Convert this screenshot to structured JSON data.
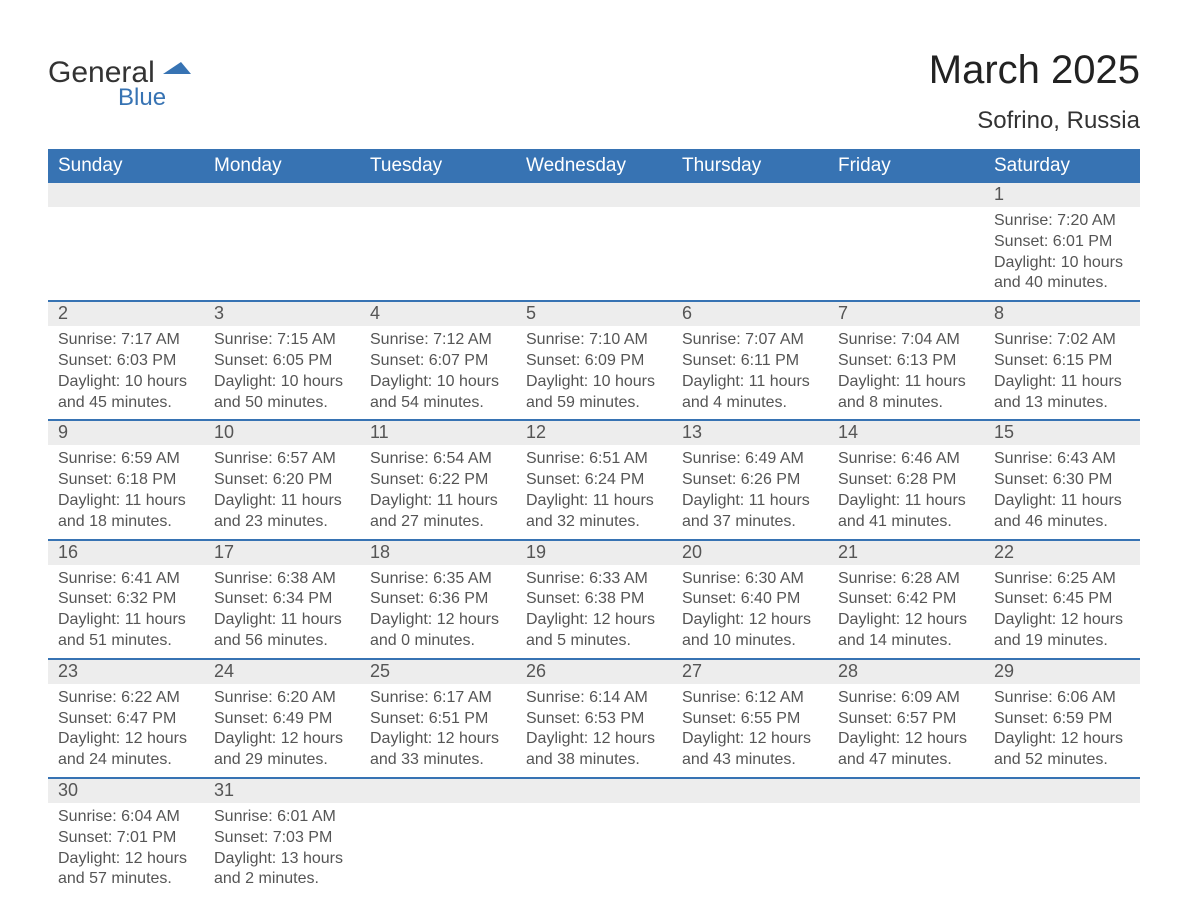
{
  "brand": {
    "name": "General",
    "sub": "Blue",
    "icon_color": "#3773b3"
  },
  "title": "March 2025",
  "location": "Sofrino, Russia",
  "colors": {
    "header_bg": "#3773b3",
    "header_text": "#ffffff",
    "row_divider": "#3773b3",
    "daynum_bg": "#ededed",
    "text": "#555555",
    "background": "#ffffff"
  },
  "typography": {
    "title_fontsize": 40,
    "subtitle_fontsize": 24,
    "header_fontsize": 19,
    "daynum_fontsize": 18,
    "body_fontsize": 16
  },
  "layout": {
    "columns": 7,
    "rows": 6,
    "week_start": "Sunday"
  },
  "day_headers": [
    "Sunday",
    "Monday",
    "Tuesday",
    "Wednesday",
    "Thursday",
    "Friday",
    "Saturday"
  ],
  "weeks": [
    [
      null,
      null,
      null,
      null,
      null,
      null,
      {
        "n": "1",
        "sunrise": "Sunrise: 7:20 AM",
        "sunset": "Sunset: 6:01 PM",
        "dl1": "Daylight: 10 hours",
        "dl2": "and 40 minutes."
      }
    ],
    [
      {
        "n": "2",
        "sunrise": "Sunrise: 7:17 AM",
        "sunset": "Sunset: 6:03 PM",
        "dl1": "Daylight: 10 hours",
        "dl2": "and 45 minutes."
      },
      {
        "n": "3",
        "sunrise": "Sunrise: 7:15 AM",
        "sunset": "Sunset: 6:05 PM",
        "dl1": "Daylight: 10 hours",
        "dl2": "and 50 minutes."
      },
      {
        "n": "4",
        "sunrise": "Sunrise: 7:12 AM",
        "sunset": "Sunset: 6:07 PM",
        "dl1": "Daylight: 10 hours",
        "dl2": "and 54 minutes."
      },
      {
        "n": "5",
        "sunrise": "Sunrise: 7:10 AM",
        "sunset": "Sunset: 6:09 PM",
        "dl1": "Daylight: 10 hours",
        "dl2": "and 59 minutes."
      },
      {
        "n": "6",
        "sunrise": "Sunrise: 7:07 AM",
        "sunset": "Sunset: 6:11 PM",
        "dl1": "Daylight: 11 hours",
        "dl2": "and 4 minutes."
      },
      {
        "n": "7",
        "sunrise": "Sunrise: 7:04 AM",
        "sunset": "Sunset: 6:13 PM",
        "dl1": "Daylight: 11 hours",
        "dl2": "and 8 minutes."
      },
      {
        "n": "8",
        "sunrise": "Sunrise: 7:02 AM",
        "sunset": "Sunset: 6:15 PM",
        "dl1": "Daylight: 11 hours",
        "dl2": "and 13 minutes."
      }
    ],
    [
      {
        "n": "9",
        "sunrise": "Sunrise: 6:59 AM",
        "sunset": "Sunset: 6:18 PM",
        "dl1": "Daylight: 11 hours",
        "dl2": "and 18 minutes."
      },
      {
        "n": "10",
        "sunrise": "Sunrise: 6:57 AM",
        "sunset": "Sunset: 6:20 PM",
        "dl1": "Daylight: 11 hours",
        "dl2": "and 23 minutes."
      },
      {
        "n": "11",
        "sunrise": "Sunrise: 6:54 AM",
        "sunset": "Sunset: 6:22 PM",
        "dl1": "Daylight: 11 hours",
        "dl2": "and 27 minutes."
      },
      {
        "n": "12",
        "sunrise": "Sunrise: 6:51 AM",
        "sunset": "Sunset: 6:24 PM",
        "dl1": "Daylight: 11 hours",
        "dl2": "and 32 minutes."
      },
      {
        "n": "13",
        "sunrise": "Sunrise: 6:49 AM",
        "sunset": "Sunset: 6:26 PM",
        "dl1": "Daylight: 11 hours",
        "dl2": "and 37 minutes."
      },
      {
        "n": "14",
        "sunrise": "Sunrise: 6:46 AM",
        "sunset": "Sunset: 6:28 PM",
        "dl1": "Daylight: 11 hours",
        "dl2": "and 41 minutes."
      },
      {
        "n": "15",
        "sunrise": "Sunrise: 6:43 AM",
        "sunset": "Sunset: 6:30 PM",
        "dl1": "Daylight: 11 hours",
        "dl2": "and 46 minutes."
      }
    ],
    [
      {
        "n": "16",
        "sunrise": "Sunrise: 6:41 AM",
        "sunset": "Sunset: 6:32 PM",
        "dl1": "Daylight: 11 hours",
        "dl2": "and 51 minutes."
      },
      {
        "n": "17",
        "sunrise": "Sunrise: 6:38 AM",
        "sunset": "Sunset: 6:34 PM",
        "dl1": "Daylight: 11 hours",
        "dl2": "and 56 minutes."
      },
      {
        "n": "18",
        "sunrise": "Sunrise: 6:35 AM",
        "sunset": "Sunset: 6:36 PM",
        "dl1": "Daylight: 12 hours",
        "dl2": "and 0 minutes."
      },
      {
        "n": "19",
        "sunrise": "Sunrise: 6:33 AM",
        "sunset": "Sunset: 6:38 PM",
        "dl1": "Daylight: 12 hours",
        "dl2": "and 5 minutes."
      },
      {
        "n": "20",
        "sunrise": "Sunrise: 6:30 AM",
        "sunset": "Sunset: 6:40 PM",
        "dl1": "Daylight: 12 hours",
        "dl2": "and 10 minutes."
      },
      {
        "n": "21",
        "sunrise": "Sunrise: 6:28 AM",
        "sunset": "Sunset: 6:42 PM",
        "dl1": "Daylight: 12 hours",
        "dl2": "and 14 minutes."
      },
      {
        "n": "22",
        "sunrise": "Sunrise: 6:25 AM",
        "sunset": "Sunset: 6:45 PM",
        "dl1": "Daylight: 12 hours",
        "dl2": "and 19 minutes."
      }
    ],
    [
      {
        "n": "23",
        "sunrise": "Sunrise: 6:22 AM",
        "sunset": "Sunset: 6:47 PM",
        "dl1": "Daylight: 12 hours",
        "dl2": "and 24 minutes."
      },
      {
        "n": "24",
        "sunrise": "Sunrise: 6:20 AM",
        "sunset": "Sunset: 6:49 PM",
        "dl1": "Daylight: 12 hours",
        "dl2": "and 29 minutes."
      },
      {
        "n": "25",
        "sunrise": "Sunrise: 6:17 AM",
        "sunset": "Sunset: 6:51 PM",
        "dl1": "Daylight: 12 hours",
        "dl2": "and 33 minutes."
      },
      {
        "n": "26",
        "sunrise": "Sunrise: 6:14 AM",
        "sunset": "Sunset: 6:53 PM",
        "dl1": "Daylight: 12 hours",
        "dl2": "and 38 minutes."
      },
      {
        "n": "27",
        "sunrise": "Sunrise: 6:12 AM",
        "sunset": "Sunset: 6:55 PM",
        "dl1": "Daylight: 12 hours",
        "dl2": "and 43 minutes."
      },
      {
        "n": "28",
        "sunrise": "Sunrise: 6:09 AM",
        "sunset": "Sunset: 6:57 PM",
        "dl1": "Daylight: 12 hours",
        "dl2": "and 47 minutes."
      },
      {
        "n": "29",
        "sunrise": "Sunrise: 6:06 AM",
        "sunset": "Sunset: 6:59 PM",
        "dl1": "Daylight: 12 hours",
        "dl2": "and 52 minutes."
      }
    ],
    [
      {
        "n": "30",
        "sunrise": "Sunrise: 6:04 AM",
        "sunset": "Sunset: 7:01 PM",
        "dl1": "Daylight: 12 hours",
        "dl2": "and 57 minutes."
      },
      {
        "n": "31",
        "sunrise": "Sunrise: 6:01 AM",
        "sunset": "Sunset: 7:03 PM",
        "dl1": "Daylight: 13 hours",
        "dl2": "and 2 minutes."
      },
      null,
      null,
      null,
      null,
      null
    ]
  ]
}
